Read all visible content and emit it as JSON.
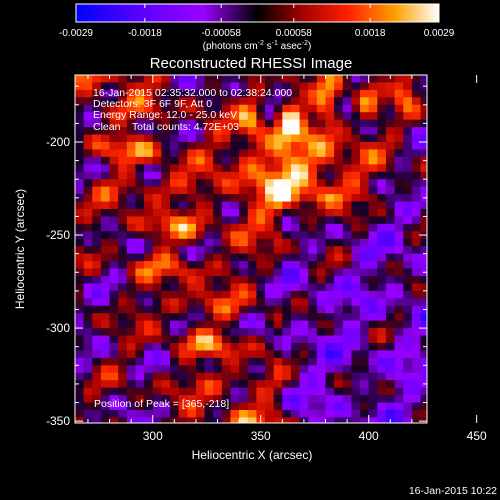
{
  "chart_data": {
    "type": "heatmap",
    "title": "Reconstructed RHESSI Image",
    "xlabel": "Heliocentric X (arcsec)",
    "ylabel": "Heliocentric Y (arcsec)",
    "xlim": [
      264,
      427
    ],
    "ylim": [
      -351,
      -164
    ],
    "xticks": [
      300,
      350,
      400,
      450
    ],
    "yticks": [
      -200,
      -250,
      -300,
      -350
    ],
    "colorbar": {
      "ticks": [
        "-0.0029",
        "-0.0018",
        "-0.00058",
        "0.00058",
        "0.0018",
        "0.0029"
      ],
      "range": [
        -0.0029,
        0.0029
      ],
      "unit_prefix": "(photons cm",
      "unit_sup1": "-2",
      "unit_mid1": " s",
      "unit_sup2": "-1",
      "unit_mid2": " asec",
      "unit_sup3": "-2",
      "unit_suffix": ")"
    },
    "annotations": [
      "16-Jan-2015 02:35:32.000 to 02:38:24.000",
      "Detectors: 3F 6F 9F, Att 0",
      "Energy Range: 12.0 - 25.0 keV",
      "Clean    Total counts: 4.72E+03"
    ],
    "peak_label": "Position of Peak = [365,-218]",
    "peak_position": [
      365,
      -218
    ],
    "timestamp": "16-Jan-2015 10:22"
  }
}
